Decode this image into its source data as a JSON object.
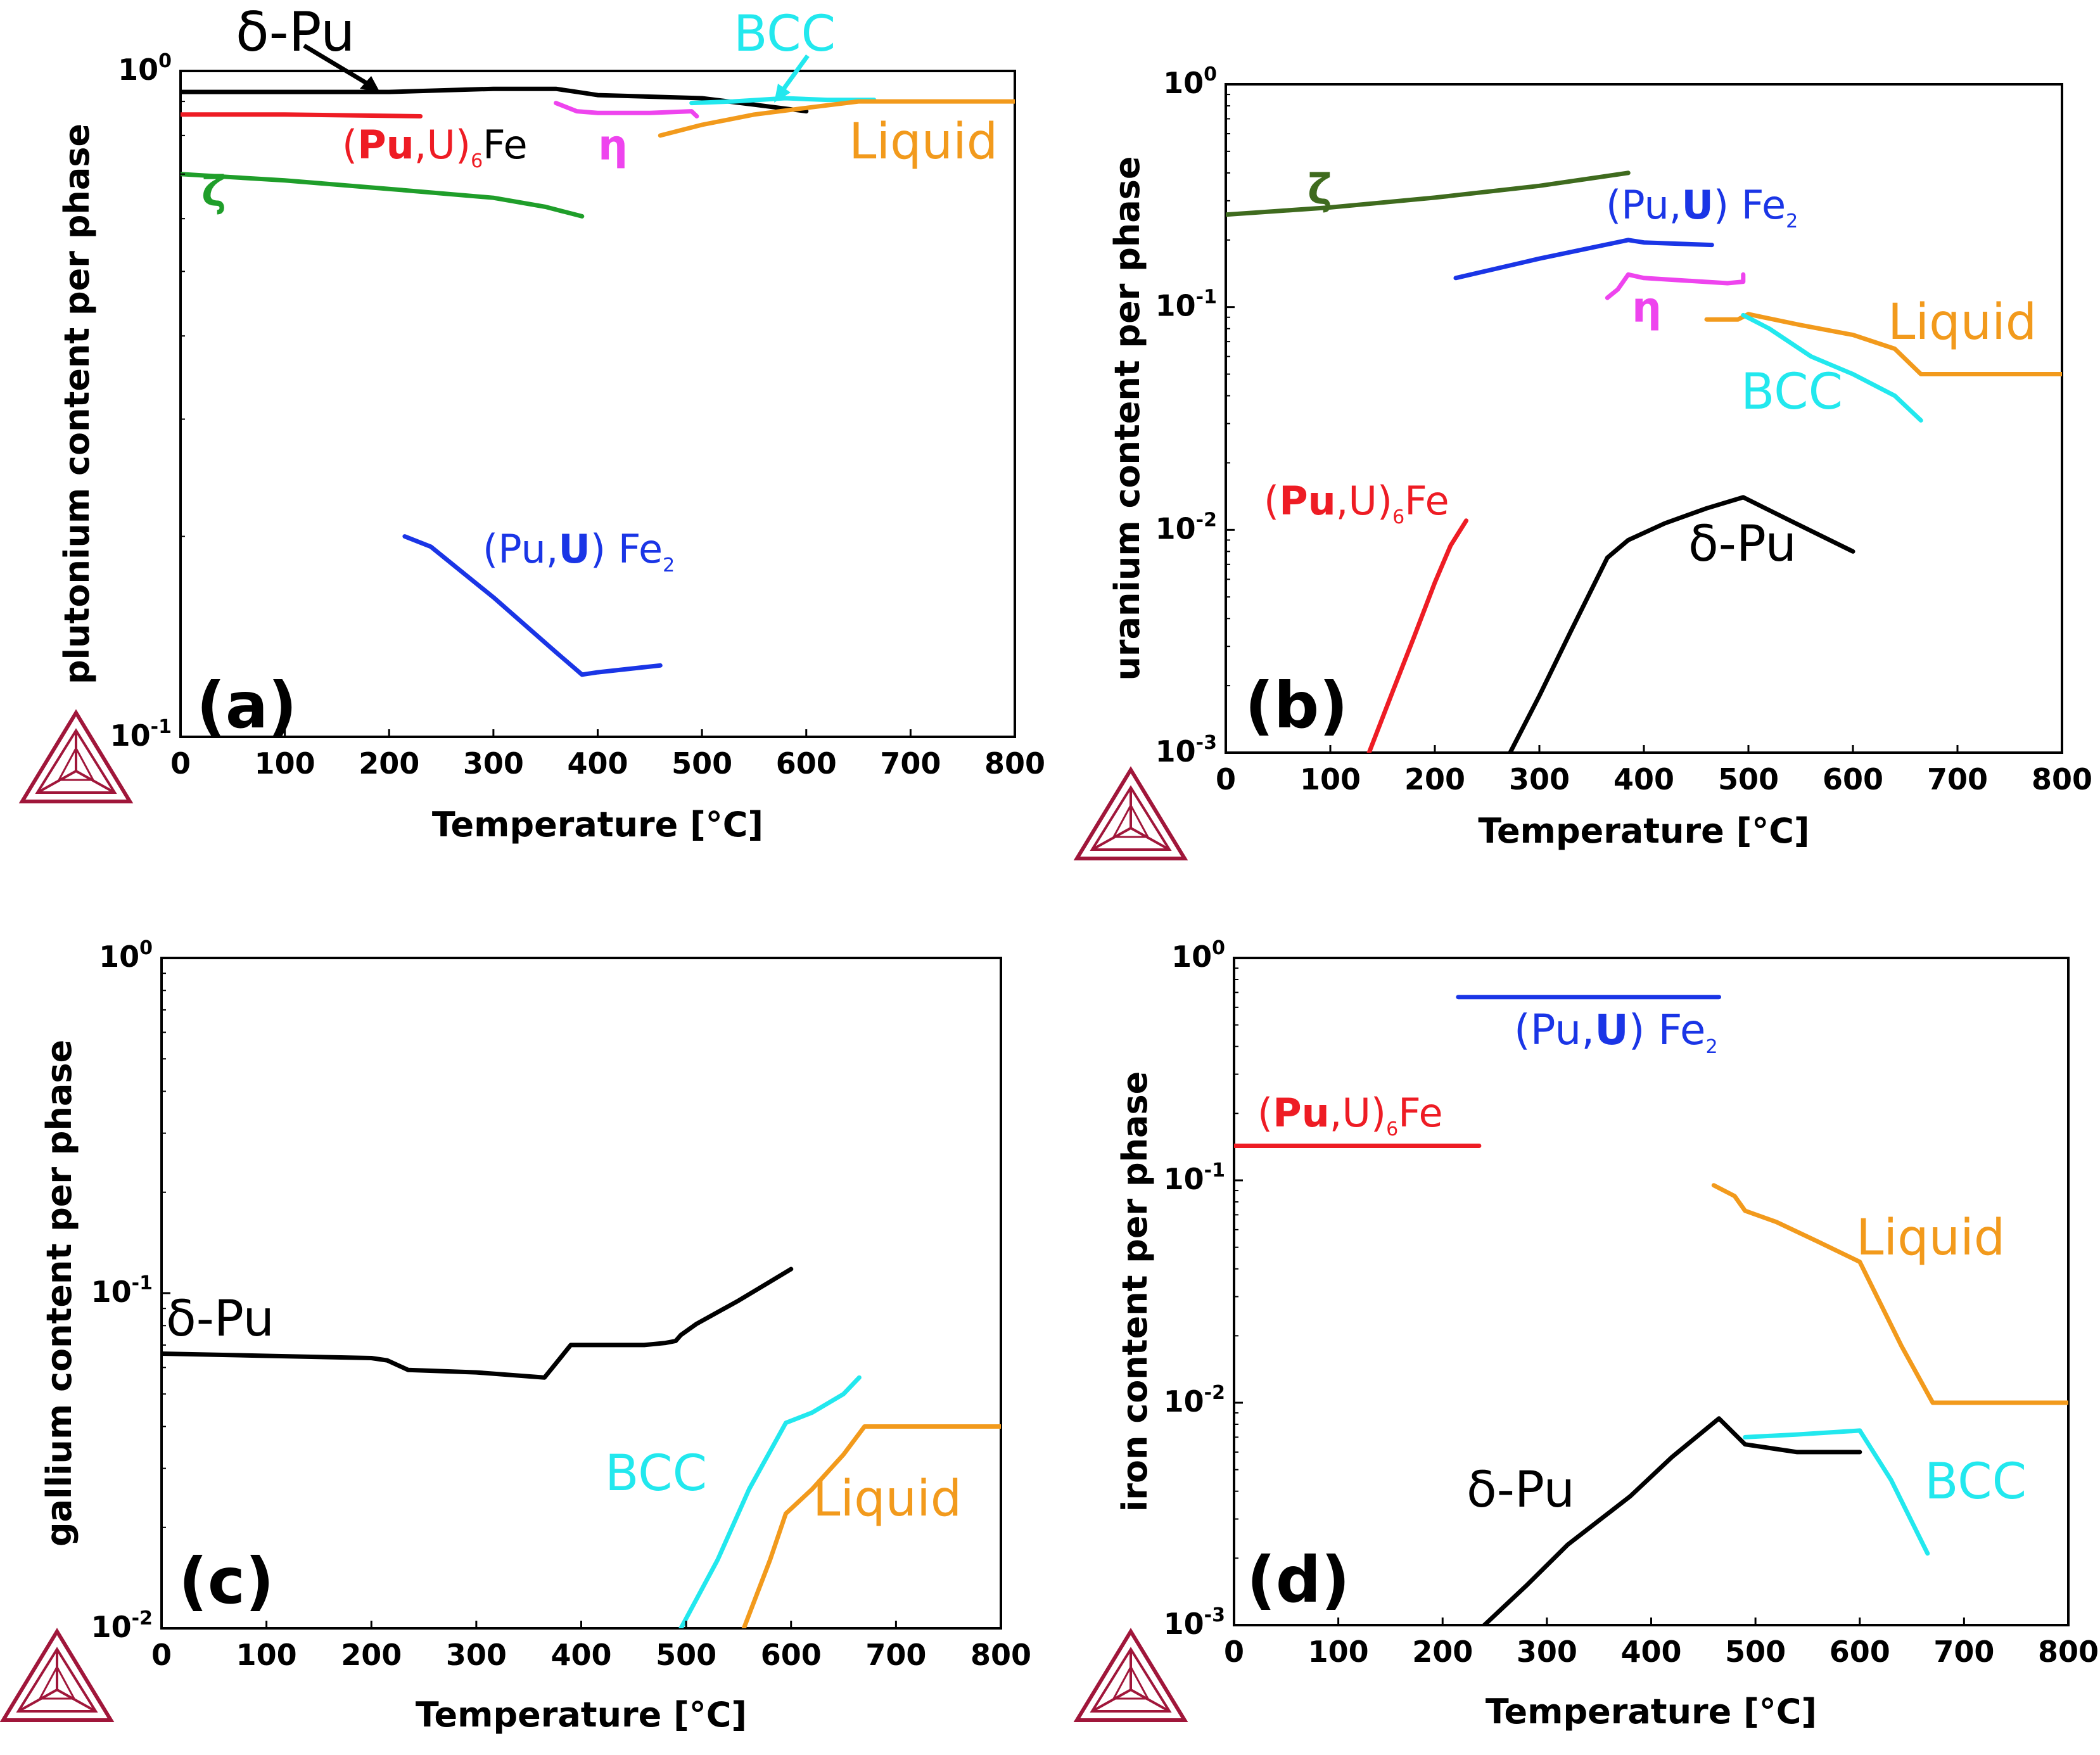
{
  "colors": {
    "delta_pu": "#000000",
    "bcc": "#22e8ee",
    "liquid": "#f29a1c",
    "pu6fe": "#ee1c24",
    "pufe2": "#1a35e6",
    "eta": "#ee44ee",
    "zeta": "#1f9e2a",
    "zeta_b": "#3f6b1e",
    "logo": "#a0163a"
  },
  "logo_icon": "thermo-calc-triangle-icon",
  "chart_data": [
    {
      "type": "line",
      "panel_label": "(a)",
      "xlabel": "Temperature [°C]",
      "ylabel": "plutonium content per phase",
      "xlim": [
        0,
        800
      ],
      "ylim": [
        0.1,
        1.0
      ],
      "yscale": "log",
      "xticks": [
        "0",
        "100",
        "200",
        "300",
        "400",
        "500",
        "600",
        "700",
        "800"
      ],
      "yticks": [
        {
          "base": "10",
          "exp": "-1",
          "value": 0.1
        },
        {
          "base": "10",
          "exp": "0",
          "value": 1.0
        }
      ],
      "series": [
        {
          "name": "δ-Pu",
          "color_key": "delta_pu",
          "x": [
            0,
            100,
            200,
            300,
            360,
            380,
            400,
            500,
            550,
            600
          ],
          "y": [
            0.93,
            0.93,
            0.93,
            0.94,
            0.94,
            0.93,
            0.92,
            0.91,
            0.89,
            0.87
          ]
        },
        {
          "name": "BCC",
          "color_key": "bcc",
          "x": [
            490,
            530,
            580,
            620,
            665
          ],
          "y": [
            0.895,
            0.9,
            0.91,
            0.905,
            0.905
          ]
        },
        {
          "name": "Liquid",
          "color_key": "liquid",
          "x": [
            460,
            500,
            550,
            600,
            650,
            665,
            700,
            800
          ],
          "y": [
            0.8,
            0.83,
            0.86,
            0.88,
            0.9,
            0.9,
            0.9,
            0.9
          ]
        },
        {
          "name": "(Pu,U)6Fe",
          "color_key": "pu6fe",
          "x": [
            0,
            100,
            230
          ],
          "y": [
            0.86,
            0.86,
            0.855
          ]
        },
        {
          "name": "η",
          "color_key": "eta",
          "x": [
            360,
            380,
            400,
            450,
            490,
            495
          ],
          "y": [
            0.895,
            0.87,
            0.865,
            0.865,
            0.87,
            0.855
          ]
        },
        {
          "name": "ζ",
          "color_key": "zeta",
          "x": [
            0,
            100,
            200,
            300,
            350,
            385
          ],
          "y": [
            0.7,
            0.685,
            0.665,
            0.645,
            0.625,
            0.605
          ]
        },
        {
          "name": "(Pu,U) Fe2",
          "color_key": "pufe2",
          "x": [
            215,
            240,
            300,
            360,
            385,
            400,
            460
          ],
          "y": [
            0.2,
            0.193,
            0.162,
            0.134,
            0.124,
            0.125,
            0.128
          ]
        }
      ]
    },
    {
      "type": "line",
      "panel_label": "(b)",
      "xlabel": "Temperature [°C]",
      "ylabel": "uranium content per phase",
      "xlim": [
        0,
        800
      ],
      "ylim": [
        0.001,
        1.0
      ],
      "yscale": "log",
      "xticks": [
        "0",
        "100",
        "200",
        "300",
        "400",
        "500",
        "600",
        "700",
        "800"
      ],
      "yticks": [
        {
          "base": "10",
          "exp": "-3",
          "value": 0.001
        },
        {
          "base": "10",
          "exp": "-2",
          "value": 0.01
        },
        {
          "base": "10",
          "exp": "-1",
          "value": 0.1
        },
        {
          "base": "10",
          "exp": "0",
          "value": 1.0
        }
      ],
      "series": [
        {
          "name": "ζ",
          "color_key": "zeta_b",
          "x": [
            0,
            100,
            200,
            300,
            385
          ],
          "y": [
            0.26,
            0.28,
            0.31,
            0.35,
            0.4
          ]
        },
        {
          "name": "(Pu,U) Fe2",
          "color_key": "pufe2",
          "x": [
            220,
            300,
            385,
            400,
            465
          ],
          "y": [
            0.135,
            0.165,
            0.2,
            0.195,
            0.19
          ]
        },
        {
          "name": "η",
          "color_key": "eta",
          "x": [
            365,
            375,
            385,
            400,
            480,
            495,
            495
          ],
          "y": [
            0.11,
            0.12,
            0.14,
            0.135,
            0.128,
            0.13,
            0.14
          ]
        },
        {
          "name": "Liquid",
          "color_key": "liquid",
          "x": [
            460,
            490,
            500,
            550,
            600,
            640,
            665,
            700,
            800
          ],
          "y": [
            0.088,
            0.088,
            0.093,
            0.083,
            0.075,
            0.065,
            0.05,
            0.05,
            0.05
          ]
        },
        {
          "name": "BCC",
          "color_key": "bcc",
          "x": [
            495,
            520,
            560,
            600,
            640,
            665
          ],
          "y": [
            0.092,
            0.08,
            0.06,
            0.05,
            0.04,
            0.031
          ]
        },
        {
          "name": "(Pu,U)6Fe",
          "color_key": "pu6fe",
          "x": [
            137,
            160,
            180,
            200,
            215,
            230
          ],
          "y": [
            0.001,
            0.0019,
            0.0033,
            0.0058,
            0.0085,
            0.011
          ]
        },
        {
          "name": "δ-Pu",
          "color_key": "delta_pu",
          "x": [
            272,
            300,
            330,
            365,
            385,
            420,
            460,
            495,
            540,
            600
          ],
          "y": [
            0.001,
            0.0018,
            0.0035,
            0.0075,
            0.009,
            0.0107,
            0.0125,
            0.014,
            0.011,
            0.008
          ]
        }
      ]
    },
    {
      "type": "line",
      "panel_label": "(c)",
      "xlabel": "Temperature [°C]",
      "ylabel": "gallium content per phase",
      "xlim": [
        0,
        800
      ],
      "ylim": [
        0.01,
        1.0
      ],
      "yscale": "log",
      "xticks": [
        "0",
        "100",
        "200",
        "300",
        "400",
        "500",
        "600",
        "700",
        "800"
      ],
      "yticks": [
        {
          "base": "10",
          "exp": "-2",
          "value": 0.01
        },
        {
          "base": "10",
          "exp": "-1",
          "value": 0.1
        },
        {
          "base": "10",
          "exp": "0",
          "value": 1.0
        }
      ],
      "series": [
        {
          "name": "δ-Pu",
          "color_key": "delta_pu",
          "x": [
            0,
            100,
            200,
            215,
            235,
            300,
            365,
            380,
            390,
            460,
            480,
            490,
            495,
            510,
            550,
            600
          ],
          "y": [
            0.066,
            0.065,
            0.064,
            0.063,
            0.059,
            0.058,
            0.056,
            0.064,
            0.07,
            0.07,
            0.071,
            0.072,
            0.075,
            0.081,
            0.095,
            0.118
          ]
        },
        {
          "name": "BCC",
          "color_key": "bcc",
          "x": [
            495,
            530,
            560,
            595,
            620,
            650,
            665
          ],
          "y": [
            0.01,
            0.016,
            0.026,
            0.041,
            0.044,
            0.05,
            0.056
          ]
        },
        {
          "name": "Liquid",
          "color_key": "liquid",
          "x": [
            555,
            580,
            595,
            620,
            650,
            670,
            700,
            800
          ],
          "y": [
            0.01,
            0.016,
            0.022,
            0.026,
            0.033,
            0.04,
            0.04,
            0.04
          ]
        }
      ]
    },
    {
      "type": "line",
      "panel_label": "(d)",
      "xlabel": "Temperature [°C]",
      "ylabel": "iron content per phase",
      "xlim": [
        0,
        800
      ],
      "ylim": [
        0.001,
        1.0
      ],
      "yscale": "log",
      "xticks": [
        "0",
        "100",
        "200",
        "300",
        "400",
        "500",
        "600",
        "700",
        "800"
      ],
      "yticks": [
        {
          "base": "10",
          "exp": "-3",
          "value": 0.001
        },
        {
          "base": "10",
          "exp": "-2",
          "value": 0.01
        },
        {
          "base": "10",
          "exp": "-1",
          "value": 0.1
        },
        {
          "base": "10",
          "exp": "0",
          "value": 1.0
        }
      ],
      "series": [
        {
          "name": "(Pu,U) Fe2",
          "color_key": "pufe2",
          "x": [
            215,
            465
          ],
          "y": [
            0.667,
            0.667
          ]
        },
        {
          "name": "(Pu,U)6Fe",
          "color_key": "pu6fe",
          "x": [
            0,
            235
          ],
          "y": [
            0.143,
            0.143
          ]
        },
        {
          "name": "Liquid",
          "color_key": "liquid",
          "x": [
            460,
            480,
            490,
            520,
            560,
            600,
            640,
            670,
            700,
            800
          ],
          "y": [
            0.095,
            0.085,
            0.073,
            0.065,
            0.053,
            0.043,
            0.018,
            0.01,
            0.01,
            0.01
          ]
        },
        {
          "name": "BCC",
          "color_key": "bcc",
          "x": [
            490,
            540,
            600,
            630,
            665
          ],
          "y": [
            0.007,
            0.0072,
            0.0075,
            0.0045,
            0.0021
          ]
        },
        {
          "name": "δ-Pu",
          "color_key": "delta_pu",
          "x": [
            240,
            280,
            320,
            380,
            420,
            465,
            490,
            540,
            600
          ],
          "y": [
            0.001,
            0.0015,
            0.0023,
            0.0038,
            0.0057,
            0.0085,
            0.0065,
            0.006,
            0.006
          ]
        }
      ]
    }
  ],
  "labels": {
    "a": {
      "delta_pu": "δ-Pu",
      "bcc": "BCC",
      "liquid": "Liquid",
      "pu6fe": {
        "open": "(",
        "pu": "Pu",
        "mid": ",U)",
        "sub": "6",
        "fe": "Fe"
      },
      "eta": "η",
      "zeta": "ζ",
      "pufe2": {
        "pre": "(Pu,",
        "u": "U",
        "post": ") Fe",
        "sub": "2"
      }
    },
    "b": {
      "zeta": "ζ",
      "pufe2": {
        "pre": "(Pu,",
        "u": "U",
        "post": ") Fe",
        "sub": "2"
      },
      "eta": "η",
      "liquid": "Liquid",
      "bcc": "BCC",
      "pu6fe": {
        "open": "(",
        "pu": "Pu",
        "mid": ",U)",
        "sub": "6",
        "fe": "Fe"
      },
      "delta_pu": "δ-Pu"
    },
    "c": {
      "delta_pu": "δ-Pu",
      "bcc": "BCC",
      "liquid": "Liquid"
    },
    "d": {
      "pufe2": {
        "pre": "(Pu,",
        "u": "U",
        "post": ") Fe",
        "sub": "2"
      },
      "pu6fe": {
        "open": "(",
        "pu": "Pu",
        "mid": ",U)",
        "sub": "6",
        "fe": "Fe"
      },
      "liquid": "Liquid",
      "delta_pu": "δ-Pu",
      "bcc": "BCC"
    }
  }
}
